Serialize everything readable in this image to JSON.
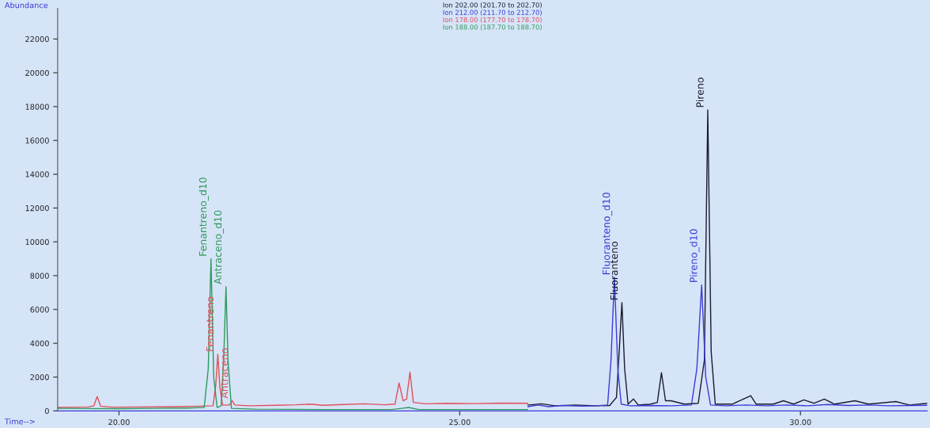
{
  "chart_data": {
    "type": "line",
    "xlabel": "Time-->",
    "ylabel": "Abundance",
    "xlim": [
      19.1,
      31.86
    ],
    "ylim": [
      0,
      23800
    ],
    "xticks": [
      {
        "value": 20,
        "label": "20.00"
      },
      {
        "value": 25,
        "label": "25.00"
      },
      {
        "value": 30,
        "label": "30.00"
      }
    ],
    "yticks": [
      0,
      2000,
      4000,
      6000,
      8000,
      10000,
      12000,
      14000,
      16000,
      18000,
      20000,
      22000
    ],
    "grid": false,
    "legend": "top",
    "marker": "none",
    "line_style": "solid",
    "series": [
      {
        "name": "Ion 202.00 (201.70 to 202.70)",
        "color": "#1a1a2e",
        "x": [
          26.0,
          26.2,
          26.4,
          26.7,
          27.0,
          27.2,
          27.3,
          27.34,
          27.38,
          27.42,
          27.47,
          27.55,
          27.62,
          27.8,
          27.9,
          27.96,
          28.02,
          28.1,
          28.3,
          28.5,
          28.59,
          28.64,
          28.69,
          28.75,
          29.0,
          29.27,
          29.35,
          29.6,
          29.75,
          29.9,
          30.05,
          30.2,
          30.35,
          30.5,
          30.8,
          31.0,
          31.4,
          31.6,
          31.86
        ],
        "values": [
          350,
          420,
          300,
          350,
          300,
          320,
          800,
          3500,
          6400,
          2500,
          400,
          700,
          350,
          400,
          500,
          2260,
          600,
          600,
          400,
          450,
          3000,
          17800,
          3500,
          400,
          400,
          900,
          400,
          400,
          600,
          400,
          650,
          450,
          700,
          400,
          600,
          400,
          550,
          350,
          450
        ]
      },
      {
        "name": "Ion 212.00 (211.70 to 212.70)",
        "color": "#3b3bd6",
        "x": [
          26.0,
          26.15,
          26.3,
          26.5,
          26.8,
          27.0,
          27.17,
          27.22,
          27.27,
          27.32,
          27.37,
          27.5,
          27.8,
          28.1,
          28.4,
          28.48,
          28.55,
          28.61,
          28.68,
          28.9,
          29.2,
          29.5,
          29.8,
          30.1,
          30.4,
          30.7,
          31.0,
          31.3,
          31.6,
          31.86
        ],
        "values": [
          250,
          350,
          250,
          320,
          280,
          300,
          350,
          3000,
          7900,
          2500,
          400,
          300,
          320,
          300,
          350,
          2500,
          7440,
          2000,
          350,
          300,
          350,
          300,
          350,
          300,
          380,
          320,
          350,
          300,
          320,
          330
        ]
      },
      {
        "name": "Ion 178.00 (177.70 to 178.70)",
        "color": "#e0505a",
        "x": [
          19.1,
          19.3,
          19.55,
          19.63,
          19.68,
          19.73,
          19.9,
          20.3,
          20.8,
          21.2,
          21.38,
          21.42,
          21.45,
          21.48,
          21.52,
          21.62,
          21.66,
          21.7,
          21.9,
          22.3,
          22.6,
          22.8,
          23.0,
          23.3,
          23.6,
          23.9,
          24.05,
          24.11,
          24.17,
          24.22,
          24.27,
          24.32,
          24.5,
          24.8,
          25.2,
          25.6,
          26.0
        ],
        "values": [
          200,
          220,
          230,
          300,
          850,
          280,
          220,
          230,
          250,
          280,
          300,
          1500,
          3350,
          1400,
          350,
          350,
          600,
          350,
          300,
          330,
          360,
          400,
          330,
          380,
          420,
          360,
          400,
          1650,
          600,
          700,
          2300,
          500,
          420,
          450,
          430,
          460,
          450
        ]
      },
      {
        "name": "Ion 188.00 (187.70 to 188.70)",
        "color": "#2e9a5a",
        "x": [
          19.1,
          19.5,
          20.0,
          20.5,
          21.0,
          21.25,
          21.31,
          21.35,
          21.39,
          21.44,
          21.5,
          21.54,
          21.57,
          21.6,
          21.65,
          22.0,
          23.0,
          24.0,
          24.25,
          24.4,
          25.0,
          26.0
        ],
        "values": [
          150,
          140,
          130,
          150,
          170,
          200,
          2500,
          9000,
          2000,
          200,
          300,
          3500,
          7350,
          3000,
          150,
          100,
          80,
          80,
          200,
          80,
          80,
          80
        ]
      }
    ],
    "annotations": [
      {
        "text": "Fenantreno_d10",
        "x": 21.35,
        "y": 9000
      },
      {
        "text": "Fenantreno",
        "x": 21.45,
        "y": 3350
      },
      {
        "text": "Antraceno_d10",
        "x": 21.57,
        "y": 7350
      },
      {
        "text": "Antraceno",
        "x": 21.66,
        "y": 600
      },
      {
        "text": "Fluoranteno_d10",
        "x": 27.27,
        "y": 7900
      },
      {
        "text": "Fluoranteno",
        "x": 27.38,
        "y": 6400
      },
      {
        "text": "Pireno_d10",
        "x": 28.55,
        "y": 7440
      },
      {
        "text": "Pireno",
        "x": 28.64,
        "y": 17800
      }
    ]
  }
}
